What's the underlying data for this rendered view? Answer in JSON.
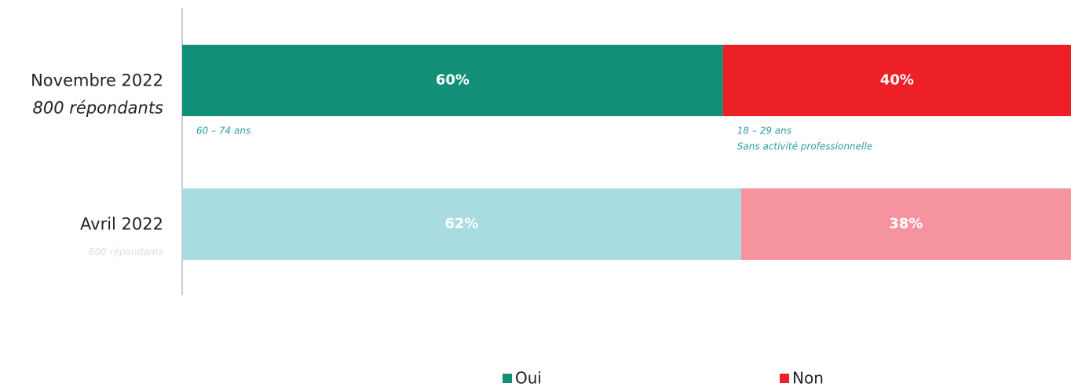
{
  "chart_data": {
    "type": "bar",
    "orientation": "horizontal",
    "stacked": true,
    "categories": [
      "Novembre 2022",
      "Avril 2022"
    ],
    "category_sublabels": [
      "800 répondants",
      "800 répondants"
    ],
    "xlim": [
      0,
      100
    ],
    "series": [
      {
        "name": "Oui",
        "color": "#138f78",
        "colors": [
          "#138f78",
          "#a9dce1"
        ],
        "values": [
          60,
          62
        ],
        "value_labels": [
          "60%",
          "62%"
        ]
      },
      {
        "name": "Non",
        "color": "#ee2027",
        "colors": [
          "#ee2027",
          "#f5939f"
        ],
        "values": [
          40,
          38
        ],
        "value_labels": [
          "40%",
          "38%"
        ]
      }
    ],
    "annotations": [
      {
        "category": 0,
        "series": 0,
        "lines": [
          "60 – 74 ans"
        ]
      },
      {
        "category": 0,
        "series": 1,
        "lines": [
          "18 – 29 ans",
          "Sans activité professionnelle"
        ]
      }
    ],
    "legend": "bottom"
  }
}
